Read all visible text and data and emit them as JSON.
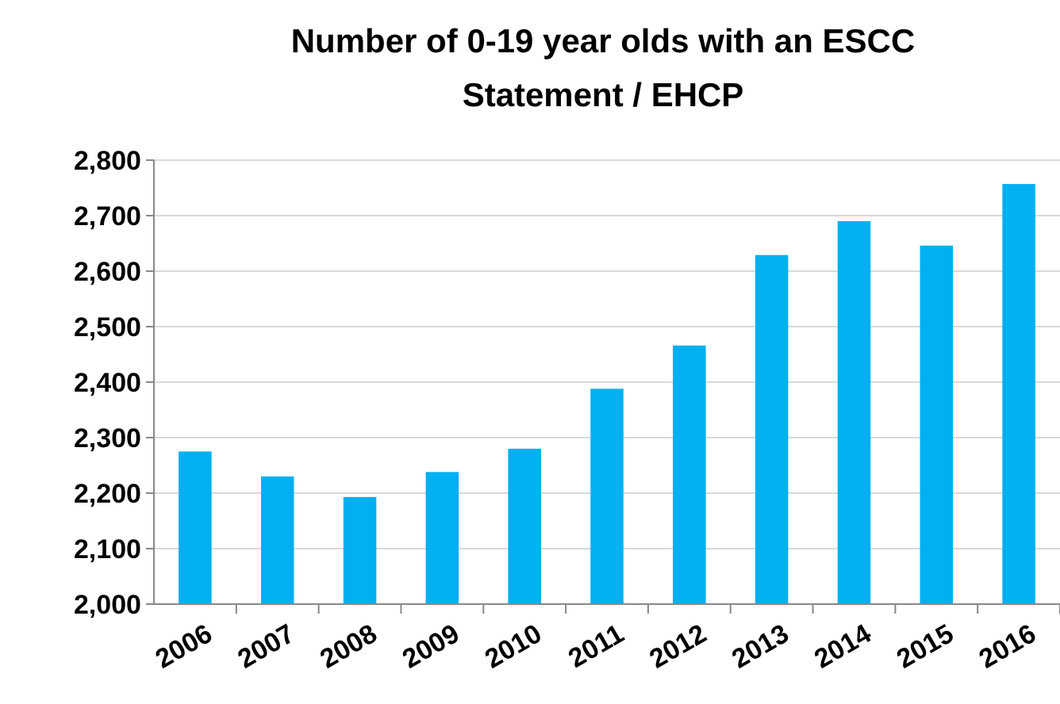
{
  "chart_data": {
    "type": "bar",
    "title": "Number of 0-19 year olds with an ESCC Statement / EHCP",
    "categories": [
      "2006",
      "2007",
      "2008",
      "2009",
      "2010",
      "2011",
      "2012",
      "2013",
      "2014",
      "2015",
      "2016"
    ],
    "values": [
      2275,
      2230,
      2193,
      2238,
      2280,
      2388,
      2466,
      2629,
      2690,
      2646,
      2757
    ],
    "color": "#00b0f0",
    "ylim": [
      2000,
      2800
    ],
    "yticks": [
      {
        "value": 2000,
        "label": "2,000"
      },
      {
        "value": 2100,
        "label": "2,100"
      },
      {
        "value": 2200,
        "label": "2,200"
      },
      {
        "value": 2300,
        "label": "2,300"
      },
      {
        "value": 2400,
        "label": "2,400"
      },
      {
        "value": 2500,
        "label": "2,500"
      },
      {
        "value": 2600,
        "label": "2,600"
      },
      {
        "value": 2700,
        "label": "2,700"
      },
      {
        "value": 2800,
        "label": "2,800"
      }
    ],
    "grid": "y"
  }
}
